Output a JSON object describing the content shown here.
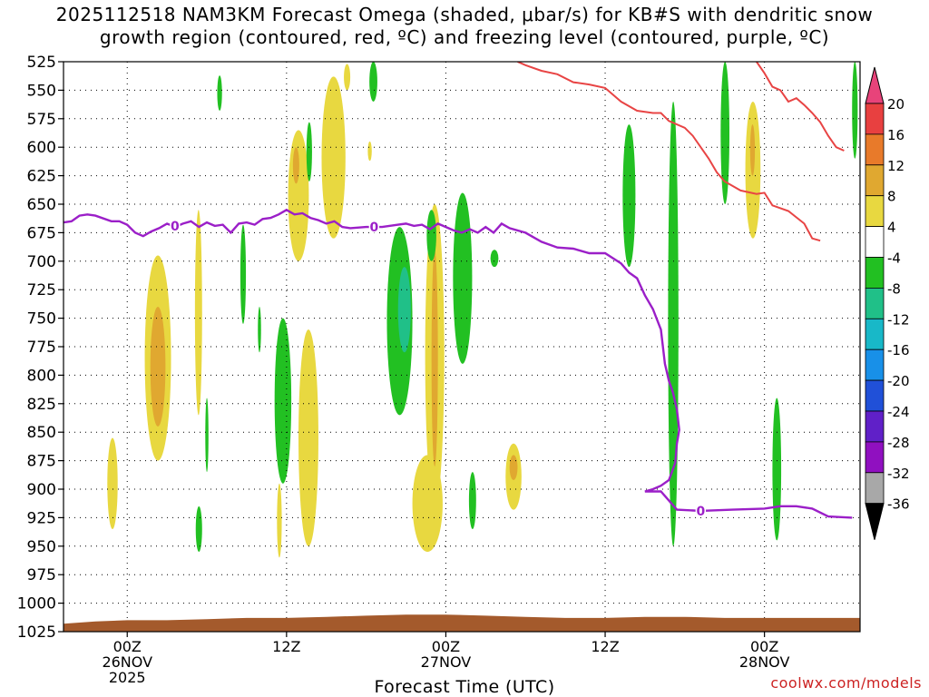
{
  "chart_data": {
    "type": "heatmap",
    "title_line1": "2025112518 NAM3KM Forecast Omega (shaded, μbar/s) for KB#S with dendritic snow",
    "title_line2": "growth region (contoured, red, ºC) and freezing level (contoured, purple, ºC)",
    "xlabel": "Forecast Time (UTC)",
    "y_levels": [
      "525",
      "550",
      "575",
      "600",
      "625",
      "650",
      "675",
      "700",
      "725",
      "750",
      "775",
      "800",
      "825",
      "850",
      "875",
      "900",
      "925",
      "950",
      "975",
      "1000",
      "1025"
    ],
    "y_range_hpa": [
      525,
      1025
    ],
    "x_range_hours": [
      -8,
      92
    ],
    "x_ticks": [
      {
        "hour": 0,
        "label1": "00Z",
        "label2": "26NOV",
        "label3": "2025"
      },
      {
        "hour": 20,
        "label1": "12Z",
        "label2": "",
        "label3": ""
      },
      {
        "hour": 40,
        "label1": "00Z",
        "label2": "27NOV",
        "label3": ""
      },
      {
        "hour": 60,
        "label1": "12Z",
        "label2": "",
        "label3": ""
      },
      {
        "hour": 80,
        "label1": "00Z",
        "label2": "28NOV",
        "label3": ""
      }
    ],
    "colorbar": {
      "labels": [
        "20",
        "16",
        "12",
        "8",
        "4",
        "-4",
        "-8",
        "-12",
        "-16",
        "-20",
        "-24",
        "-28",
        "-32",
        "-36"
      ],
      "colors": [
        "#e8437a",
        "#e84040",
        "#e87a2a",
        "#e0a830",
        "#e8d840",
        "#ffffff",
        "#22c022",
        "#20c088",
        "#18b8c8",
        "#1890e8",
        "#2050d8",
        "#6020c8",
        "#9010c0",
        "#a8a8a8",
        "#000000"
      ]
    },
    "freezing_level": {
      "label": "0",
      "color": "#9b1fc8",
      "points": [
        [
          -8,
          666
        ],
        [
          -7,
          665
        ],
        [
          -6,
          660
        ],
        [
          -5,
          659
        ],
        [
          -4,
          660
        ],
        [
          -2,
          665
        ],
        [
          -1,
          665
        ],
        [
          0,
          668
        ],
        [
          1,
          675
        ],
        [
          2,
          678
        ],
        [
          3,
          674
        ],
        [
          4,
          671
        ],
        [
          5,
          667
        ],
        [
          6,
          670
        ],
        [
          7,
          667
        ],
        [
          8,
          665
        ],
        [
          9,
          670
        ],
        [
          10,
          666
        ],
        [
          11,
          669
        ],
        [
          12,
          668
        ],
        [
          13,
          675
        ],
        [
          14,
          667
        ],
        [
          15,
          666
        ],
        [
          16,
          668
        ],
        [
          17,
          663
        ],
        [
          18,
          662
        ],
        [
          19,
          659
        ],
        [
          20,
          655
        ],
        [
          21,
          659
        ],
        [
          22,
          658
        ],
        [
          23,
          662
        ],
        [
          24,
          664
        ],
        [
          25,
          667
        ],
        [
          26,
          665
        ],
        [
          27,
          670
        ],
        [
          28,
          671
        ],
        [
          30,
          670
        ],
        [
          32,
          670
        ],
        [
          34,
          668
        ],
        [
          35,
          667
        ],
        [
          36,
          669
        ],
        [
          37,
          668
        ],
        [
          38,
          672
        ],
        [
          39,
          667
        ],
        [
          40,
          670
        ],
        [
          41,
          673
        ],
        [
          42,
          675
        ],
        [
          43,
          672
        ],
        [
          44,
          675
        ],
        [
          45,
          670
        ],
        [
          46,
          675
        ],
        [
          47,
          667
        ],
        [
          48,
          671
        ],
        [
          50,
          675
        ],
        [
          52,
          683
        ],
        [
          54,
          688
        ],
        [
          56,
          689
        ],
        [
          58,
          693
        ],
        [
          60,
          693
        ],
        [
          62,
          702
        ],
        [
          63,
          710
        ],
        [
          64,
          715
        ],
        [
          65,
          730
        ],
        [
          66,
          742
        ],
        [
          67,
          760
        ],
        [
          67.5,
          790
        ],
        [
          68,
          805
        ],
        [
          68.5,
          815
        ],
        [
          69,
          830
        ],
        [
          69.3,
          848
        ],
        [
          69,
          860
        ],
        [
          68.8,
          877
        ],
        [
          68,
          892
        ],
        [
          67,
          897
        ],
        [
          66,
          900
        ],
        [
          65,
          902
        ],
        [
          67,
          902
        ],
        [
          69,
          918
        ],
        [
          72,
          919
        ],
        [
          76,
          918
        ],
        [
          80,
          917
        ],
        [
          82,
          915
        ],
        [
          84,
          915
        ],
        [
          86,
          917
        ],
        [
          88,
          924
        ],
        [
          91,
          925
        ]
      ]
    },
    "dgz_contour": {
      "color": "#e84444",
      "upper": [
        [
          49,
          525
        ],
        [
          50,
          528
        ],
        [
          52,
          533
        ],
        [
          54,
          536
        ],
        [
          56,
          543
        ],
        [
          58,
          545
        ],
        [
          60,
          548
        ],
        [
          62,
          560
        ],
        [
          64,
          568
        ],
        [
          66,
          570
        ],
        [
          67,
          570
        ],
        [
          68,
          577
        ],
        [
          70,
          583
        ],
        [
          71,
          590
        ],
        [
          72,
          600
        ],
        [
          73,
          610
        ],
        [
          74,
          622
        ],
        [
          75,
          630
        ],
        [
          77,
          638
        ],
        [
          79,
          641
        ],
        [
          80,
          640
        ],
        [
          81,
          651
        ],
        [
          83,
          656
        ],
        [
          85,
          667
        ],
        [
          86,
          680
        ],
        [
          87,
          682
        ]
      ],
      "lower": [
        [
          79,
          525
        ],
        [
          80,
          535
        ],
        [
          81,
          547
        ],
        [
          82,
          550
        ],
        [
          83,
          560
        ],
        [
          84,
          557
        ],
        [
          85,
          563
        ],
        [
          86,
          570
        ],
        [
          87,
          578
        ],
        [
          88,
          590
        ],
        [
          89,
          600
        ],
        [
          90,
          603
        ]
      ]
    },
    "omega_blobs": [
      {
        "h0": -2.5,
        "h1": -1.2,
        "p0": 855,
        "p1": 935,
        "c": "#e8d840"
      },
      {
        "h0": 2.2,
        "h1": 5.5,
        "p0": 695,
        "p1": 875,
        "c": "#e8d840"
      },
      {
        "h0": 2.9,
        "h1": 4.8,
        "p0": 740,
        "p1": 845,
        "c": "#e0a830"
      },
      {
        "h0": 8.5,
        "h1": 9.4,
        "p0": 655,
        "p1": 835,
        "c": "#e8d840"
      },
      {
        "h0": 11.3,
        "h1": 11.9,
        "p0": 537,
        "p1": 568,
        "c": "#22c022"
      },
      {
        "h0": 8.6,
        "h1": 9.4,
        "p0": 915,
        "p1": 955,
        "c": "#22c022"
      },
      {
        "h0": 9.8,
        "h1": 10.2,
        "p0": 820,
        "p1": 885,
        "c": "#22c022"
      },
      {
        "h0": 14.2,
        "h1": 14.9,
        "p0": 668,
        "p1": 755,
        "c": "#22c022"
      },
      {
        "h0": 16.4,
        "h1": 16.8,
        "p0": 740,
        "p1": 780,
        "c": "#22c022"
      },
      {
        "h0": 18.8,
        "h1": 19.4,
        "p0": 895,
        "p1": 960,
        "c": "#e8d840"
      },
      {
        "h0": 18.5,
        "h1": 20.6,
        "p0": 750,
        "p1": 895,
        "c": "#22c022"
      },
      {
        "h0": 20.2,
        "h1": 22.8,
        "p0": 585,
        "p1": 700,
        "c": "#e8d840"
      },
      {
        "h0": 20.8,
        "h1": 21.6,
        "p0": 600,
        "p1": 632,
        "c": "#e0a830"
      },
      {
        "h0": 22.5,
        "h1": 23.2,
        "p0": 578,
        "p1": 630,
        "c": "#22c022"
      },
      {
        "h0": 24.4,
        "h1": 27.4,
        "p0": 538,
        "p1": 680,
        "c": "#e8d840"
      },
      {
        "h0": 21.5,
        "h1": 24,
        "p0": 760,
        "p1": 950,
        "c": "#e8d840"
      },
      {
        "h0": 27.2,
        "h1": 28,
        "p0": 527,
        "p1": 550,
        "c": "#e8d840"
      },
      {
        "h0": 30.4,
        "h1": 31.4,
        "p0": 525,
        "p1": 560,
        "c": "#22c022"
      },
      {
        "h0": 30.2,
        "h1": 30.7,
        "p0": 595,
        "p1": 612,
        "c": "#e8d840"
      },
      {
        "h0": 32.6,
        "h1": 35.8,
        "p0": 670,
        "p1": 835,
        "c": "#22c022"
      },
      {
        "h0": 34,
        "h1": 35.6,
        "p0": 705,
        "p1": 780,
        "c": "#20c088"
      },
      {
        "h0": 35.8,
        "h1": 39.6,
        "p0": 870,
        "p1": 955,
        "c": "#e8d840"
      },
      {
        "h0": 37.4,
        "h1": 39.8,
        "p0": 650,
        "p1": 915,
        "c": "#e8d840"
      },
      {
        "h0": 38.2,
        "h1": 39,
        "p0": 690,
        "p1": 880,
        "c": "#e0a830"
      },
      {
        "h0": 37.6,
        "h1": 38.8,
        "p0": 655,
        "p1": 700,
        "c": "#22c022"
      },
      {
        "h0": 40.9,
        "h1": 43.3,
        "p0": 640,
        "p1": 790,
        "c": "#22c022"
      },
      {
        "h0": 42.9,
        "h1": 43.8,
        "p0": 885,
        "p1": 935,
        "c": "#22c022"
      },
      {
        "h0": 45.6,
        "h1": 46.6,
        "p0": 690,
        "p1": 705,
        "c": "#22c022"
      },
      {
        "h0": 47.5,
        "h1": 49.5,
        "p0": 860,
        "p1": 918,
        "c": "#e8d840"
      },
      {
        "h0": 48,
        "h1": 49,
        "p0": 870,
        "p1": 892,
        "c": "#e0a830"
      },
      {
        "h0": 62.2,
        "h1": 63.8,
        "p0": 580,
        "p1": 705,
        "c": "#22c022"
      },
      {
        "h0": 67.9,
        "h1": 69.2,
        "p0": 560,
        "p1": 950,
        "c": "#22c022"
      },
      {
        "h0": 74.5,
        "h1": 75.6,
        "p0": 525,
        "p1": 650,
        "c": "#22c022"
      },
      {
        "h0": 77.6,
        "h1": 79.5,
        "p0": 560,
        "p1": 680,
        "c": "#e8d840"
      },
      {
        "h0": 78.2,
        "h1": 78.8,
        "p0": 580,
        "p1": 625,
        "c": "#e0a830"
      },
      {
        "h0": 81,
        "h1": 82.1,
        "p0": 820,
        "p1": 945,
        "c": "#22c022"
      },
      {
        "h0": 91,
        "h1": 91.7,
        "p0": 525,
        "p1": 610,
        "c": "#22c022"
      }
    ],
    "terrain_color": "#a45a2c",
    "terrain_points": [
      [
        -8,
        1025
      ],
      [
        -8,
        1018
      ],
      [
        -4,
        1016
      ],
      [
        0,
        1015
      ],
      [
        5,
        1015
      ],
      [
        10,
        1014
      ],
      [
        15,
        1013
      ],
      [
        20,
        1013
      ],
      [
        25,
        1012
      ],
      [
        30,
        1011
      ],
      [
        35,
        1010
      ],
      [
        40,
        1010
      ],
      [
        45,
        1011
      ],
      [
        50,
        1012
      ],
      [
        55,
        1013
      ],
      [
        60,
        1013
      ],
      [
        65,
        1012
      ],
      [
        70,
        1012
      ],
      [
        75,
        1013
      ],
      [
        80,
        1013
      ],
      [
        85,
        1013
      ],
      [
        92,
        1013
      ],
      [
        92,
        1025
      ]
    ]
  },
  "credit": "coolwx.com/models"
}
